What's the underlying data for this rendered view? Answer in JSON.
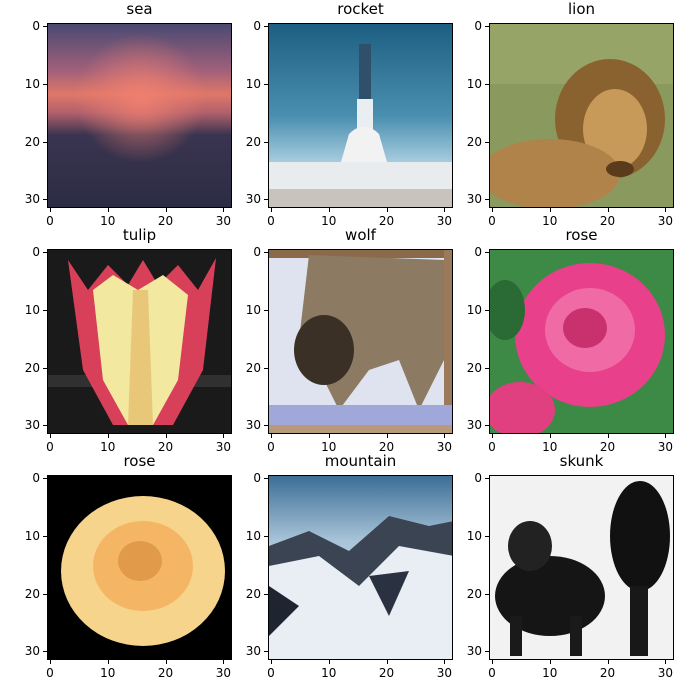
{
  "axis": {
    "x_ticks": [
      "0",
      "10",
      "20",
      "30"
    ],
    "y_ticks": [
      "0",
      "10",
      "20",
      "30"
    ]
  },
  "panels": [
    {
      "title": "sea"
    },
    {
      "title": "rocket"
    },
    {
      "title": "lion"
    },
    {
      "title": "tulip"
    },
    {
      "title": "wolf"
    },
    {
      "title": "rose"
    },
    {
      "title": "rose"
    },
    {
      "title": "mountain"
    },
    {
      "title": "skunk"
    }
  ]
}
